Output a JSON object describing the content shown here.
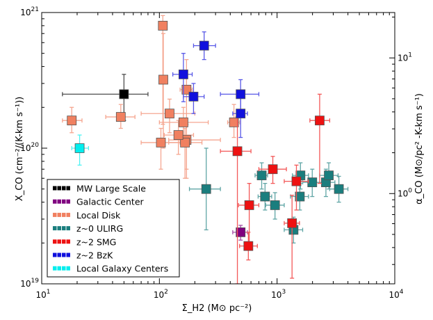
{
  "chart_data": {
    "type": "scatter",
    "xlabel": "Σ_H2 (M⊙ pc⁻²)",
    "ylabel_left": "X_CO (cm⁻²/(K-km s⁻¹))",
    "ylabel_right": "α_CO (M⊙/pc² -K-km s⁻¹)",
    "xscale": "log",
    "yscale": "log",
    "xlim": [
      10,
      10000
    ],
    "ylim": [
      1e+19,
      1e+21
    ],
    "right_ylim": [
      0.2161,
      21.61
    ],
    "x_ticks": [
      {
        "value": 10,
        "base": "10",
        "exp": "1"
      },
      {
        "value": 100,
        "base": "10",
        "exp": "2"
      },
      {
        "value": 1000,
        "base": "10",
        "exp": "3"
      },
      {
        "value": 10000,
        "base": "10",
        "exp": "4"
      }
    ],
    "y_ticks": [
      {
        "value": 1e+19,
        "base": "10",
        "exp": "19"
      },
      {
        "value": 1e+20,
        "base": "10",
        "exp": "20"
      },
      {
        "value": 1e+21,
        "base": "10",
        "exp": "21"
      }
    ],
    "right_ticks": [
      {
        "value": 1,
        "label": "10",
        "exp": "0"
      },
      {
        "value": 10,
        "label": "10",
        "exp": "1"
      }
    ],
    "legend_position": "lower-left",
    "series": [
      {
        "name": "MW Large Scale",
        "color": "#000000",
        "points": [
          {
            "x": 50,
            "y": 2.5e+20,
            "xerr": [
              15,
              80
            ],
            "yerr": [
              1.6e+20,
              3.5e+20
            ]
          }
        ]
      },
      {
        "name": "Galactic Center",
        "color": "#800080",
        "points": [
          {
            "x": 490,
            "y": 2.4e+19,
            "xerr": [
              420,
              560
            ],
            "yerr": [
              2.1e+19,
              2.7e+19
            ]
          }
        ]
      },
      {
        "name": "Local Disk",
        "color": "#f08060",
        "points": [
          {
            "x": 18,
            "y": 1.6e+20,
            "xerr": [
              15,
              22
            ],
            "yerr": [
              1.3e+20,
              2e+20
            ]
          },
          {
            "x": 47,
            "y": 1.7e+20,
            "xerr": [
              35,
              62
            ],
            "yerr": [
              1.4e+20,
              2.1e+20
            ]
          },
          {
            "x": 107,
            "y": 8e+20,
            "xerr": [
              100,
              115
            ],
            "yerr": [
              1.5e+20,
              9.5e+20
            ]
          },
          {
            "x": 108,
            "y": 3.2e+20,
            "xerr": [
              100,
              117
            ],
            "yerr": [
              1e+20,
              7e+20
            ]
          },
          {
            "x": 122,
            "y": 1.8e+20,
            "xerr": [
              70,
              200
            ],
            "yerr": [
              1.3e+20,
              2.3e+20
            ]
          },
          {
            "x": 160,
            "y": 1.55e+20,
            "xerr": [
              100,
              260
            ],
            "yerr": [
              1.2e+20,
              2e+20
            ]
          },
          {
            "x": 170,
            "y": 2.7e+20,
            "xerr": [
              150,
              190
            ],
            "yerr": [
              6e+19,
              4.5e+20
            ]
          },
          {
            "x": 170,
            "y": 1.15e+20,
            "xerr": [
              120,
              330
            ],
            "yerr": [
              7e+19,
              1.5e+20
            ]
          },
          {
            "x": 165,
            "y": 1.1e+20,
            "xerr": [
              120,
              230
            ],
            "yerr": [
              6e+19,
              1.4e+20
            ]
          },
          {
            "x": 145,
            "y": 1.25e+20,
            "xerr": [
              110,
              195
            ],
            "yerr": [
              9e+19,
              1.6e+20
            ]
          },
          {
            "x": 103,
            "y": 1.1e+20,
            "xerr": [
              70,
              150
            ],
            "yerr": [
              7e+19,
              1.4e+20
            ]
          },
          {
            "x": 430,
            "y": 1.55e+20,
            "xerr": [
              380,
              480
            ],
            "yerr": [
              1.2e+20,
              2.1e+20
            ]
          }
        ]
      },
      {
        "name": "z~0 ULIRG",
        "color": "#1a7e7e",
        "points": [
          {
            "x": 250,
            "y": 5e+19,
            "xerr": [
              180,
              330
            ],
            "yerr": [
              2.5e+19,
              1e+20
            ]
          },
          {
            "x": 740,
            "y": 6.3e+19,
            "xerr": [
              650,
              830
            ],
            "yerr": [
              5e+19,
              7.8e+19
            ]
          },
          {
            "x": 790,
            "y": 4.4e+19,
            "xerr": [
              690,
              900
            ],
            "yerr": [
              3.5e+19,
              5.5e+19
            ]
          },
          {
            "x": 960,
            "y": 3.8e+19,
            "xerr": [
              800,
              1150
            ],
            "yerr": [
              3e+19,
              4.7e+19
            ]
          },
          {
            "x": 1580,
            "y": 6.3e+19,
            "xerr": [
              1350,
              1850
            ],
            "yerr": [
              5e+19,
              7.8e+19
            ]
          },
          {
            "x": 1560,
            "y": 4.4e+19,
            "xerr": [
              1300,
              1850
            ],
            "yerr": [
              3.5e+19,
              5.5e+19
            ]
          },
          {
            "x": 1990,
            "y": 5.6e+19,
            "xerr": [
              1650,
              2400
            ],
            "yerr": [
              4.4e+19,
              7e+19
            ]
          },
          {
            "x": 2600,
            "y": 5.6e+19,
            "xerr": [
              2150,
              3100
            ],
            "yerr": [
              4.4e+19,
              7e+19
            ]
          },
          {
            "x": 2750,
            "y": 6.3e+19,
            "xerr": [
              2300,
              3300
            ],
            "yerr": [
              5e+19,
              7.8e+19
            ]
          },
          {
            "x": 3350,
            "y": 5e+19,
            "xerr": [
              2800,
              4000
            ],
            "yerr": [
              4e+19,
              6.2e+19
            ]
          },
          {
            "x": 1380,
            "y": 2.5e+19,
            "xerr": [
              1150,
              1650
            ],
            "yerr": [
              2e+19,
              3.1e+19
            ]
          }
        ]
      },
      {
        "name": "z~2 SMG",
        "color": "#ee1111",
        "points": [
          {
            "x": 2300,
            "y": 1.6e+20,
            "xerr": [
              1900,
              2800
            ],
            "yerr": [
              5.5e+19,
              2.5e+20
            ]
          },
          {
            "x": 460,
            "y": 9.5e+19,
            "xerr": [
              330,
              600
            ],
            "yerr": [
              1e+19,
              1.7e+20
            ]
          },
          {
            "x": 920,
            "y": 7e+19,
            "xerr": [
              700,
              1200
            ],
            "yerr": [
              5.5e+19,
              8.7e+19
            ]
          },
          {
            "x": 1460,
            "y": 5.7e+19,
            "xerr": [
              1150,
              1850
            ],
            "yerr": [
              3.5e+19,
              7.5e+19
            ]
          },
          {
            "x": 580,
            "y": 3.8e+19,
            "xerr": [
              470,
              700
            ],
            "yerr": [
              2e+19,
              5.5e+19
            ]
          },
          {
            "x": 1340,
            "y": 2.8e+19,
            "xerr": [
              1150,
              1550
            ],
            "yerr": [
              1.1e+19,
              4.5e+19
            ]
          },
          {
            "x": 570,
            "y": 1.9e+19,
            "xerr": [
              480,
              680
            ],
            "yerr": [
              1.5e+19,
              2.4e+19
            ]
          }
        ]
      },
      {
        "name": "z~2 BzK",
        "color": "#1111dd",
        "points": [
          {
            "x": 240,
            "y": 5.7e+20,
            "xerr": [
              195,
              300
            ],
            "yerr": [
              4.5e+20,
              7.2e+20
            ]
          },
          {
            "x": 160,
            "y": 3.5e+20,
            "xerr": [
              130,
              190
            ],
            "yerr": [
              2.2e+20,
              5e+20
            ]
          },
          {
            "x": 195,
            "y": 2.4e+20,
            "xerr": [
              160,
              240
            ],
            "yerr": [
              1.8e+20,
              3e+20
            ]
          },
          {
            "x": 490,
            "y": 2.5e+20,
            "xerr": [
              330,
              700
            ],
            "yerr": [
              1.9e+20,
              3.2e+20
            ]
          },
          {
            "x": 490,
            "y": 1.8e+20,
            "xerr": [
              420,
              560
            ],
            "yerr": [
              1.2e+20,
              2.6e+20
            ]
          }
        ]
      },
      {
        "name": "Local Galaxy Centers",
        "color": "#00eeee",
        "points": [
          {
            "x": 21,
            "y": 1e+20,
            "xerr": [
              18,
              25
            ],
            "yerr": [
              7.5e+19,
              1.25e+20
            ]
          }
        ]
      }
    ]
  }
}
